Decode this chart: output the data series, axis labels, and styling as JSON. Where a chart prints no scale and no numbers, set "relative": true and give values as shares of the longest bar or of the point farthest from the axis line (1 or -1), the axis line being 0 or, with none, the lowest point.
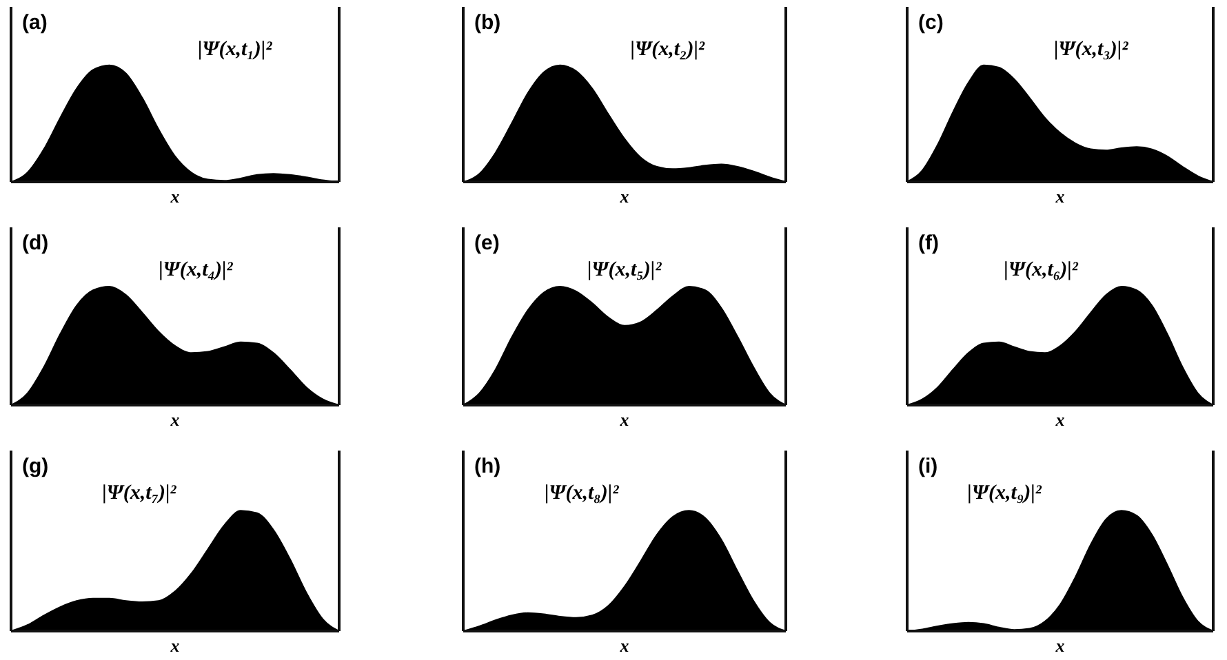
{
  "chart_data": [
    {
      "type": "area",
      "title": "(a)",
      "xlabel": "x",
      "annotations": [
        "|Ψ(x,t₁)|²"
      ],
      "relative": true,
      "color": "#000000",
      "categories": [
        null,
        null,
        null,
        null,
        null,
        null,
        null,
        null,
        null,
        null,
        null,
        null,
        null,
        null,
        null,
        null,
        null,
        null,
        null,
        null,
        null
      ],
      "values": [
        0,
        0.08,
        0.28,
        0.55,
        0.8,
        0.96,
        1,
        0.93,
        0.72,
        0.45,
        0.22,
        0.08,
        0.02,
        0.01,
        0.03,
        0.06,
        0.07,
        0.06,
        0.04,
        0.015,
        0
      ]
    },
    {
      "type": "area",
      "title": "(b)",
      "xlabel": "x",
      "annotations": [
        "|Ψ(x,t₂)|²"
      ],
      "relative": true,
      "color": "#000000",
      "categories": [
        null,
        null,
        null,
        null,
        null,
        null,
        null,
        null,
        null,
        null,
        null,
        null,
        null,
        null,
        null,
        null,
        null,
        null,
        null,
        null,
        null
      ],
      "values": [
        0,
        0.07,
        0.25,
        0.5,
        0.76,
        0.94,
        1,
        0.95,
        0.8,
        0.58,
        0.37,
        0.21,
        0.13,
        0.11,
        0.12,
        0.14,
        0.15,
        0.13,
        0.09,
        0.04,
        0
      ]
    },
    {
      "type": "area",
      "title": "(c)",
      "xlabel": "x",
      "annotations": [
        "|Ψ(x,t₃)|²"
      ],
      "relative": true,
      "color": "#000000",
      "categories": [
        null,
        null,
        null,
        null,
        null,
        null,
        null,
        null,
        null,
        null,
        null,
        null,
        null,
        null,
        null,
        null,
        null,
        null,
        null,
        null,
        null
      ],
      "values": [
        0,
        0.1,
        0.32,
        0.6,
        0.85,
        1,
        0.98,
        0.88,
        0.72,
        0.55,
        0.42,
        0.33,
        0.28,
        0.27,
        0.29,
        0.3,
        0.28,
        0.22,
        0.13,
        0.05,
        0
      ]
    },
    {
      "type": "area",
      "title": "(d)",
      "xlabel": "x",
      "annotations": [
        "|Ψ(x,t₄)|²"
      ],
      "relative": true,
      "color": "#000000",
      "categories": [
        null,
        null,
        null,
        null,
        null,
        null,
        null,
        null,
        null,
        null,
        null,
        null,
        null,
        null,
        null,
        null,
        null,
        null,
        null,
        null,
        null
      ],
      "values": [
        0,
        0.1,
        0.32,
        0.6,
        0.84,
        0.97,
        1,
        0.93,
        0.78,
        0.62,
        0.5,
        0.44,
        0.45,
        0.49,
        0.53,
        0.52,
        0.44,
        0.3,
        0.15,
        0.05,
        0
      ]
    },
    {
      "type": "area",
      "title": "(e)",
      "xlabel": "x",
      "annotations": [
        "|Ψ(x,t₅)|²"
      ],
      "relative": true,
      "color": "#000000",
      "categories": [
        null,
        null,
        null,
        null,
        null,
        null,
        null,
        null,
        null,
        null,
        null,
        null,
        null,
        null,
        null,
        null,
        null,
        null,
        null,
        null,
        null
      ],
      "values": [
        0,
        0.1,
        0.3,
        0.57,
        0.8,
        0.95,
        1,
        0.96,
        0.86,
        0.74,
        0.67,
        0.7,
        0.8,
        0.92,
        1,
        0.97,
        0.82,
        0.58,
        0.32,
        0.1,
        0
      ]
    },
    {
      "type": "area",
      "title": "(f)",
      "xlabel": "x",
      "annotations": [
        "|Ψ(x,t₆)|²"
      ],
      "relative": true,
      "color": "#000000",
      "categories": [
        null,
        null,
        null,
        null,
        null,
        null,
        null,
        null,
        null,
        null,
        null,
        null,
        null,
        null,
        null,
        null,
        null,
        null,
        null,
        null,
        null
      ],
      "values": [
        0,
        0.05,
        0.15,
        0.3,
        0.44,
        0.52,
        0.53,
        0.49,
        0.45,
        0.44,
        0.5,
        0.62,
        0.78,
        0.93,
        1,
        0.97,
        0.84,
        0.6,
        0.32,
        0.1,
        0
      ]
    },
    {
      "type": "area",
      "title": "(g)",
      "xlabel": "x",
      "annotations": [
        "|Ψ(x,t₇)|²"
      ],
      "relative": true,
      "color": "#000000",
      "categories": [
        null,
        null,
        null,
        null,
        null,
        null,
        null,
        null,
        null,
        null,
        null,
        null,
        null,
        null,
        null,
        null,
        null,
        null,
        null,
        null,
        null
      ],
      "values": [
        0,
        0.05,
        0.13,
        0.2,
        0.25,
        0.27,
        0.27,
        0.25,
        0.24,
        0.25,
        0.33,
        0.48,
        0.68,
        0.88,
        1,
        0.98,
        0.84,
        0.6,
        0.32,
        0.1,
        0
      ]
    },
    {
      "type": "area",
      "title": "(h)",
      "xlabel": "x",
      "annotations": [
        "|Ψ(x,t₈)|²"
      ],
      "relative": true,
      "color": "#000000",
      "categories": [
        null,
        null,
        null,
        null,
        null,
        null,
        null,
        null,
        null,
        null,
        null,
        null,
        null,
        null,
        null,
        null,
        null,
        null,
        null,
        null,
        null
      ],
      "values": [
        0,
        0.04,
        0.09,
        0.13,
        0.15,
        0.14,
        0.12,
        0.11,
        0.13,
        0.21,
        0.37,
        0.58,
        0.8,
        0.95,
        1,
        0.94,
        0.76,
        0.5,
        0.25,
        0.07,
        0
      ]
    },
    {
      "type": "area",
      "title": "(i)",
      "xlabel": "x",
      "annotations": [
        "|Ψ(x,t₉)|²"
      ],
      "relative": true,
      "color": "#000000",
      "categories": [
        null,
        null,
        null,
        null,
        null,
        null,
        null,
        null,
        null,
        null,
        null,
        null,
        null,
        null,
        null,
        null,
        null,
        null,
        null,
        null,
        null
      ],
      "values": [
        0,
        0.015,
        0.04,
        0.06,
        0.07,
        0.06,
        0.03,
        0.01,
        0.02,
        0.08,
        0.22,
        0.45,
        0.72,
        0.93,
        1,
        0.96,
        0.8,
        0.55,
        0.28,
        0.08,
        0
      ]
    }
  ]
}
